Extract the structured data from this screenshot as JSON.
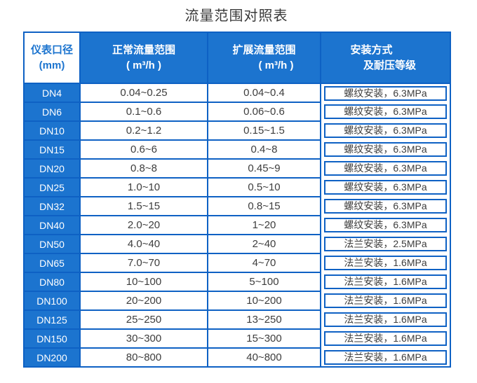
{
  "title": "流量范围对照表",
  "colors": {
    "header_blue": "#1c74cf",
    "border_blue": "#0e61c4",
    "cell_text": "#3d3d3d",
    "header_text": "#ffffff",
    "corner_bg": "#ffffff"
  },
  "chart_data": {
    "type": "table",
    "title": "流量范围对照表",
    "columns": [
      {
        "line1": "仪表口径",
        "line2": "(mm)"
      },
      {
        "line1": "正常流量范围",
        "line2": "( m³/h )"
      },
      {
        "line1": "扩展流量范围",
        "line2": "( m³/h )"
      },
      {
        "line1": "安装方式",
        "line2": "及耐压等级"
      }
    ],
    "rows": [
      [
        "DN4",
        "0.04~0.25",
        "0.04~0.4",
        "螺纹安装，6.3MPa"
      ],
      [
        "DN6",
        "0.1~0.6",
        "0.06~0.6",
        "螺纹安装，6.3MPa"
      ],
      [
        "DN10",
        "0.2~1.2",
        "0.15~1.5",
        "螺纹安装，6.3MPa"
      ],
      [
        "DN15",
        "0.6~6",
        "0.4~8",
        "螺纹安装，6.3MPa"
      ],
      [
        "DN20",
        "0.8~8",
        "0.45~9",
        "螺纹安装，6.3MPa"
      ],
      [
        "DN25",
        "1.0~10",
        "0.5~10",
        "螺纹安装，6.3MPa"
      ],
      [
        "DN32",
        "1.5~15",
        "0.8~15",
        "螺纹安装，6.3MPa"
      ],
      [
        "DN40",
        "2.0~20",
        "1~20",
        "螺纹安装，6.3MPa"
      ],
      [
        "DN50",
        "4.0~40",
        "2~40",
        "法兰安装，2.5MPa"
      ],
      [
        "DN65",
        "7.0~70",
        "4~70",
        "法兰安装，1.6MPa"
      ],
      [
        "DN80",
        "10~100",
        "5~100",
        "法兰安装，1.6MPa"
      ],
      [
        "DN100",
        "20~200",
        "10~200",
        "法兰安装，1.6MPa"
      ],
      [
        "DN125",
        "25~250",
        "13~250",
        "法兰安装，1.6MPa"
      ],
      [
        "DN150",
        "30~300",
        "15~300",
        "法兰安装，1.6MPa"
      ],
      [
        "DN200",
        "80~800",
        "40~800",
        "法兰安装，1.6MPa"
      ]
    ]
  }
}
